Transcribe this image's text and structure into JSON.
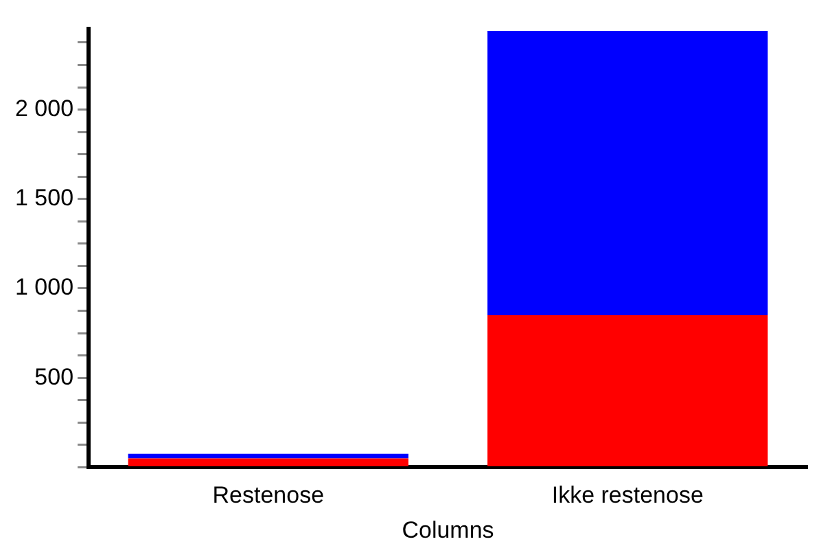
{
  "chart_data": {
    "type": "bar",
    "xlabel": "Columns",
    "categories": [
      "Restenose",
      "Ikke restenose"
    ],
    "stacked": true,
    "series": [
      {
        "color": "#ff0000",
        "values": [
          50,
          850
        ]
      },
      {
        "color": "#0000ff",
        "values": [
          25,
          1590
        ]
      }
    ],
    "ylim": [
      0,
      2450
    ],
    "yticks": [
      {
        "value": 0,
        "label": null
      },
      {
        "value": 125,
        "label": null
      },
      {
        "value": 250,
        "label": null
      },
      {
        "value": 375,
        "label": null
      },
      {
        "value": 500,
        "label": "500"
      },
      {
        "value": 625,
        "label": null
      },
      {
        "value": 750,
        "label": null
      },
      {
        "value": 875,
        "label": null
      },
      {
        "value": 1000,
        "label": "1 000"
      },
      {
        "value": 1125,
        "label": null
      },
      {
        "value": 1250,
        "label": null
      },
      {
        "value": 1375,
        "label": null
      },
      {
        "value": 1500,
        "label": "1 500"
      },
      {
        "value": 1625,
        "label": null
      },
      {
        "value": 1750,
        "label": null
      },
      {
        "value": 1875,
        "label": null
      },
      {
        "value": 2000,
        "label": "2 000"
      },
      {
        "value": 2125,
        "label": null
      },
      {
        "value": 2250,
        "label": null
      },
      {
        "value": 2375,
        "label": null
      }
    ],
    "grid": false,
    "legend": false
  }
}
